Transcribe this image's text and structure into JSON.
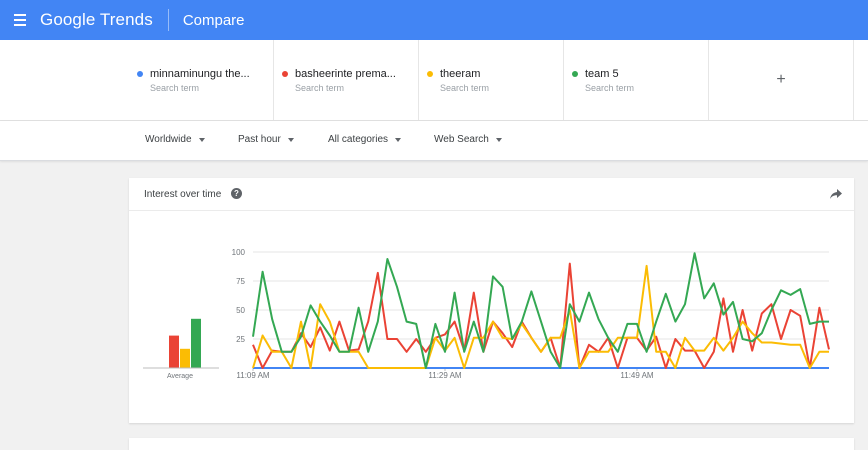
{
  "header": {
    "brand": "Google Trends",
    "page_title": "Compare"
  },
  "terms": [
    {
      "name": "minnaminungu the...",
      "sub": "Search term",
      "color": "#4285f4"
    },
    {
      "name": "basheerinte prema...",
      "sub": "Search term",
      "color": "#ea4335"
    },
    {
      "name": "theeram",
      "sub": "Search term",
      "color": "#fbbc04"
    },
    {
      "name": "team 5",
      "sub": "Search term",
      "color": "#34a853"
    }
  ],
  "add_term_symbol": "+",
  "filters": {
    "region": "Worldwide",
    "time": "Past hour",
    "category": "All categories",
    "property": "Web Search"
  },
  "interest_card": {
    "title": "Interest over time",
    "help_symbol": "?",
    "average_label": "Average"
  },
  "chart_data": {
    "type": "line",
    "y_ticks": [
      "100",
      "75",
      "50",
      "25"
    ],
    "ylim": [
      0,
      100
    ],
    "x_tick_labels": [
      "11:09 AM",
      "11:29 AM",
      "11:49 AM"
    ],
    "x_tick_index": [
      0,
      20,
      40
    ],
    "averages": [
      {
        "name": "basheerinte prema...",
        "value": 27,
        "color": "#ea4335"
      },
      {
        "name": "theeram",
        "value": 16,
        "color": "#fbbc04"
      },
      {
        "name": "team 5",
        "value": 41,
        "color": "#34a853"
      }
    ],
    "series": [
      {
        "name": "minnaminungu the...",
        "color": "#4285f4",
        "values": [
          0,
          0,
          0,
          0,
          0,
          0,
          0,
          0,
          0,
          0,
          0,
          0,
          0,
          0,
          0,
          0,
          0,
          0,
          0,
          0,
          0,
          0,
          0,
          0,
          0,
          0,
          0,
          0,
          0,
          0,
          0,
          0,
          0,
          0,
          0,
          0,
          0,
          0,
          0,
          0,
          0,
          0,
          0,
          0,
          0,
          0,
          0,
          0,
          0,
          0,
          0,
          0,
          0,
          0,
          0,
          0,
          0,
          0,
          0,
          0,
          0
        ]
      },
      {
        "name": "basheerinte prema...",
        "color": "#ea4335",
        "values": [
          20,
          0,
          15,
          14,
          14,
          30,
          18,
          35,
          15,
          40,
          15,
          16,
          40,
          82,
          25,
          25,
          14,
          25,
          14,
          26,
          29,
          40,
          15,
          65,
          14,
          40,
          30,
          18,
          40,
          26,
          14,
          26,
          0,
          90,
          0,
          20,
          14,
          26,
          0,
          26,
          26,
          15,
          27,
          0,
          25,
          15,
          15,
          0,
          14,
          60,
          14,
          50,
          15,
          47,
          55,
          25,
          50,
          45,
          0,
          52,
          16
        ]
      },
      {
        "name": "theeram",
        "color": "#fbbc04",
        "values": [
          0,
          28,
          14,
          14,
          0,
          40,
          0,
          55,
          40,
          14,
          14,
          14,
          0,
          0,
          0,
          0,
          0,
          0,
          0,
          26,
          15,
          26,
          0,
          26,
          26,
          40,
          26,
          25,
          38,
          26,
          14,
          26,
          26,
          50,
          0,
          14,
          14,
          14,
          26,
          26,
          26,
          88,
          14,
          14,
          0,
          26,
          15,
          15,
          26,
          15,
          26,
          40,
          30,
          22,
          22,
          21,
          20,
          20,
          0,
          14,
          14
        ]
      },
      {
        "name": "team 5",
        "color": "#34a853",
        "values": [
          27,
          83,
          42,
          14,
          14,
          27,
          54,
          40,
          28,
          14,
          14,
          52,
          14,
          40,
          94,
          70,
          40,
          38,
          0,
          38,
          14,
          65,
          14,
          40,
          14,
          79,
          70,
          25,
          40,
          66,
          40,
          14,
          0,
          55,
          40,
          65,
          42,
          26,
          14,
          38,
          38,
          14,
          40,
          64,
          40,
          55,
          99,
          60,
          73,
          46,
          57,
          25,
          23,
          30,
          50,
          67,
          63,
          68,
          38,
          40,
          40
        ]
      }
    ]
  }
}
